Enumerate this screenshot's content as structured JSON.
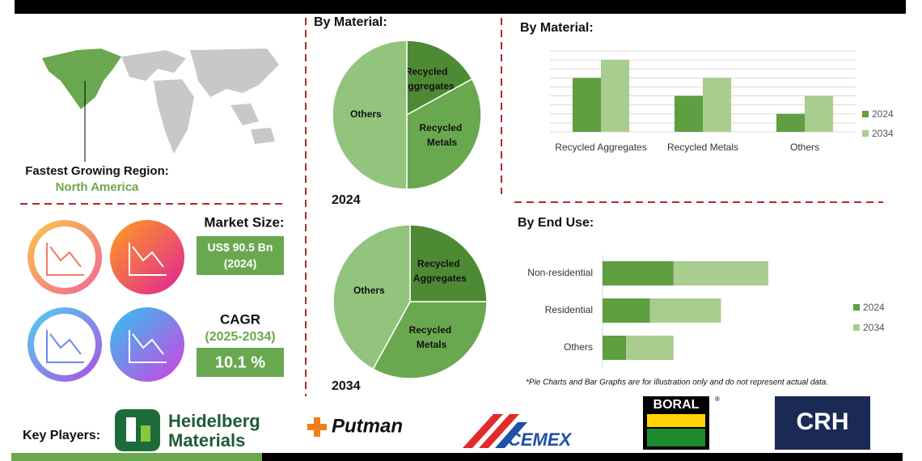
{
  "region": {
    "label": "Fastest Growing Region:",
    "value": "North America"
  },
  "market_size": {
    "label": "Market Size:",
    "value": "US$ 90.5 Bn",
    "year": "(2024)"
  },
  "cagr": {
    "label": "CAGR",
    "period": "(2025-2034)",
    "value": "10.1 %"
  },
  "chart_data": [
    {
      "type": "pie",
      "title": "By Material:",
      "label": "2024",
      "categories": [
        "Recycled Aggregates",
        "Recycled Metals",
        "Others"
      ],
      "values": [
        17,
        33,
        50
      ],
      "colors": [
        "#4e8a34",
        "#6aa84f",
        "#93c47d"
      ]
    },
    {
      "type": "pie",
      "label": "2034",
      "categories": [
        "Recycled Aggregates",
        "Recycled Metals",
        "Others"
      ],
      "values": [
        25,
        33,
        42
      ],
      "colors": [
        "#4e8a34",
        "#6aa84f",
        "#93c47d"
      ]
    },
    {
      "type": "bar",
      "title": "By Material:",
      "categories": [
        "Recycled Aggregates",
        "Recycled Metals",
        "Others"
      ],
      "series": [
        {
          "name": "2024",
          "color": "#5f9e41",
          "values": [
            6,
            4,
            2
          ]
        },
        {
          "name": "2034",
          "color": "#a9cc8f",
          "values": [
            8,
            6,
            4
          ]
        }
      ],
      "ylim": [
        0,
        9
      ],
      "yticks": [
        0,
        1,
        2,
        3,
        4,
        5,
        6,
        7,
        8,
        9
      ],
      "grid": true,
      "legend": "right"
    },
    {
      "type": "bar",
      "orientation": "horizontal",
      "stacked": true,
      "title": "By End Use:",
      "categories": [
        "Non-residential",
        "Residential",
        "Others"
      ],
      "series": [
        {
          "name": "2024",
          "color": "#5f9e41",
          "values": [
            3,
            2,
            1
          ]
        },
        {
          "name": "2034",
          "color": "#a9cc8f",
          "values": [
            4,
            3,
            2
          ]
        }
      ],
      "xlim": [
        0,
        7
      ],
      "legend": "right"
    }
  ],
  "note": "*Pie Charts and Bar Graphs are for illustration only and do not represent actual data.",
  "key_players": {
    "label": "Key Players:",
    "companies": [
      {
        "lines": [
          "Heidelberg",
          "Materials"
        ]
      },
      {
        "lines": [
          "Putman"
        ]
      },
      {
        "lines": [
          "CEMEX"
        ]
      },
      {
        "lines": [
          "BORAL"
        ]
      },
      {
        "lines": [
          "CRH"
        ]
      }
    ]
  }
}
